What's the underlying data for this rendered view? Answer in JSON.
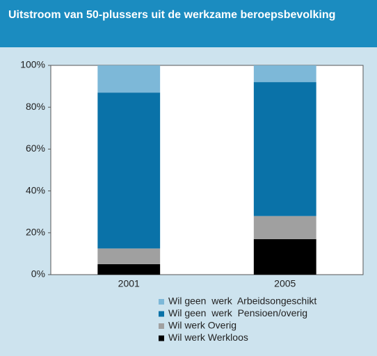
{
  "chart_data": {
    "type": "bar",
    "stacked": true,
    "title": "Uitstroom van 50-plussers uit de werkzame beroepsbevolking",
    "categories": [
      "2001",
      "2005"
    ],
    "series": [
      {
        "name": "Wil werk Werkloos",
        "color": "#000000",
        "values": [
          5,
          17
        ]
      },
      {
        "name": "Wil werk Overig",
        "color": "#a0a0a0",
        "values": [
          7.5,
          11
        ]
      },
      {
        "name": "Wil geen  werk  Pensioen/overig",
        "color": "#0a72a8",
        "values": [
          74.5,
          64
        ]
      },
      {
        "name": "Wil geen  werk  Arbeidsongeschikt",
        "color": "#7db8d8",
        "values": [
          13,
          8
        ]
      }
    ],
    "ylim": [
      0,
      100
    ],
    "yticks": [
      {
        "value": 0,
        "label": "0%"
      },
      {
        "value": 20,
        "label": "20%"
      },
      {
        "value": 40,
        "label": "40%"
      },
      {
        "value": 60,
        "label": "60%"
      },
      {
        "value": 80,
        "label": "80%"
      },
      {
        "value": 100,
        "label": "100%"
      }
    ],
    "grid": false
  }
}
